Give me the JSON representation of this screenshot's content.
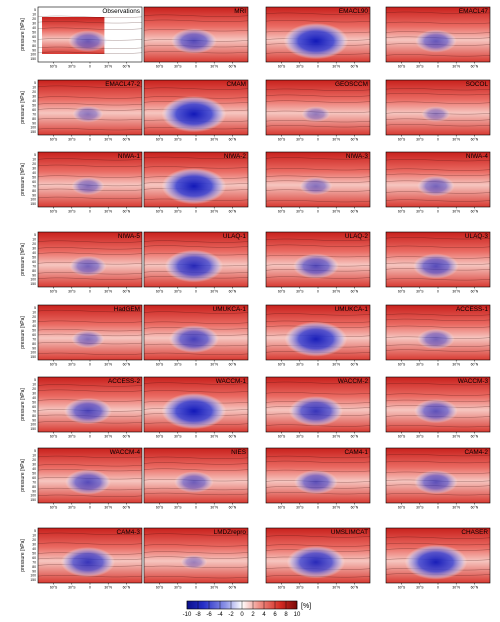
{
  "chart_data": {
    "type": "heatmap",
    "ylabel": "pressure [hPa]",
    "y_ticks": [
      "5",
      "10",
      "20",
      "30",
      "40",
      "50",
      "60",
      "70",
      "80",
      "90",
      "100",
      "150"
    ],
    "x_ticks": [
      "60°S",
      "30°S",
      "0",
      "30°N",
      "60°N"
    ],
    "panels": [
      {
        "title": "Observations",
        "low": 0.35,
        "coverage": "partial"
      },
      {
        "title": "MRI",
        "low": 0.5
      },
      {
        "title": "EMACL90",
        "low": 0.95
      },
      {
        "title": "EMACL47",
        "low": 0.4
      },
      {
        "title": "EMACL47-2",
        "low": 0.15
      },
      {
        "title": "CMAM",
        "low": 0.95
      },
      {
        "title": "GEOSCCM",
        "low": 0.1
      },
      {
        "title": "SOCOL",
        "low": 0.1
      },
      {
        "title": "NIWA-1",
        "low": 0.2
      },
      {
        "title": "NIWA-2",
        "low": 0.95
      },
      {
        "title": "NIWA-3",
        "low": 0.2
      },
      {
        "title": "NIWA-4",
        "low": 0.3
      },
      {
        "title": "NIWA-5",
        "low": 0.3
      },
      {
        "title": "ULAQ-1",
        "low": 0.8
      },
      {
        "title": "ULAQ-2",
        "low": 0.5
      },
      {
        "title": "ULAQ-3",
        "low": 0.5
      },
      {
        "title": "HadGEM",
        "low": 0.2
      },
      {
        "title": "UMUKCA-1",
        "low": 0.6
      },
      {
        "title": "UMUKCA-1",
        "low": 0.9
      },
      {
        "title": "ACCESS-1",
        "low": 0.3
      },
      {
        "title": "ACCESS-2",
        "low": 0.55
      },
      {
        "title": "WACCM-1",
        "low": 0.95
      },
      {
        "title": "WACCM-2",
        "low": 0.7
      },
      {
        "title": "WACCM-3",
        "low": 0.45
      },
      {
        "title": "WACCM-4",
        "low": 0.5
      },
      {
        "title": "NIES",
        "low": 0.35
      },
      {
        "title": "CAM4-1",
        "low": 0.45
      },
      {
        "title": "CAM4-2",
        "low": 0.45
      },
      {
        "title": "CAM4-3",
        "low": 0.7
      },
      {
        "title": "LMDZrepro",
        "low": 0.05
      },
      {
        "title": "UMSLIMCAT",
        "low": 0.8
      },
      {
        "title": "CHASER",
        "low": 0.9
      }
    ],
    "colorbar": {
      "ticks": [
        "-10",
        "-8",
        "-6",
        "-4",
        "-2",
        "0",
        "2",
        "4",
        "6",
        "8",
        "10"
      ],
      "unit": "[%]"
    },
    "colors": {
      "neg": "#1f24c8",
      "pos": "#cc1a16",
      "mid": "#ffffff"
    }
  }
}
